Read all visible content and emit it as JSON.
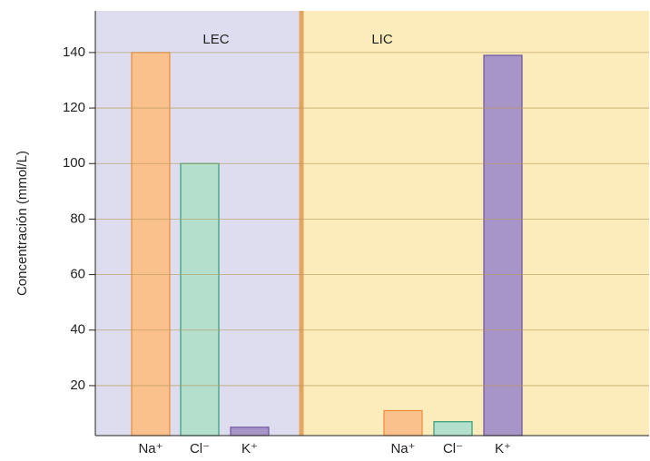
{
  "chart_data": {
    "type": "bar",
    "ylabel": "Concentración (mmol/L)",
    "ylim": [
      2,
      155
    ],
    "yticks": [
      20,
      40,
      60,
      80,
      100,
      120,
      140
    ],
    "grid": true,
    "categories": [
      "Na⁺",
      "Cl⁻",
      "K⁺"
    ],
    "colors": [
      "#fbc18c",
      "#b3dfcc",
      "#a795c8"
    ],
    "edge_colors": [
      "#ec8a3c",
      "#2f9e7a",
      "#6a559c"
    ],
    "groups": [
      {
        "name": "LEC",
        "color": "#dedcef",
        "values": [
          140,
          100,
          5
        ]
      },
      {
        "name": "LIC",
        "color": "#fcebbb",
        "values": [
          11,
          7,
          139
        ]
      }
    ]
  }
}
